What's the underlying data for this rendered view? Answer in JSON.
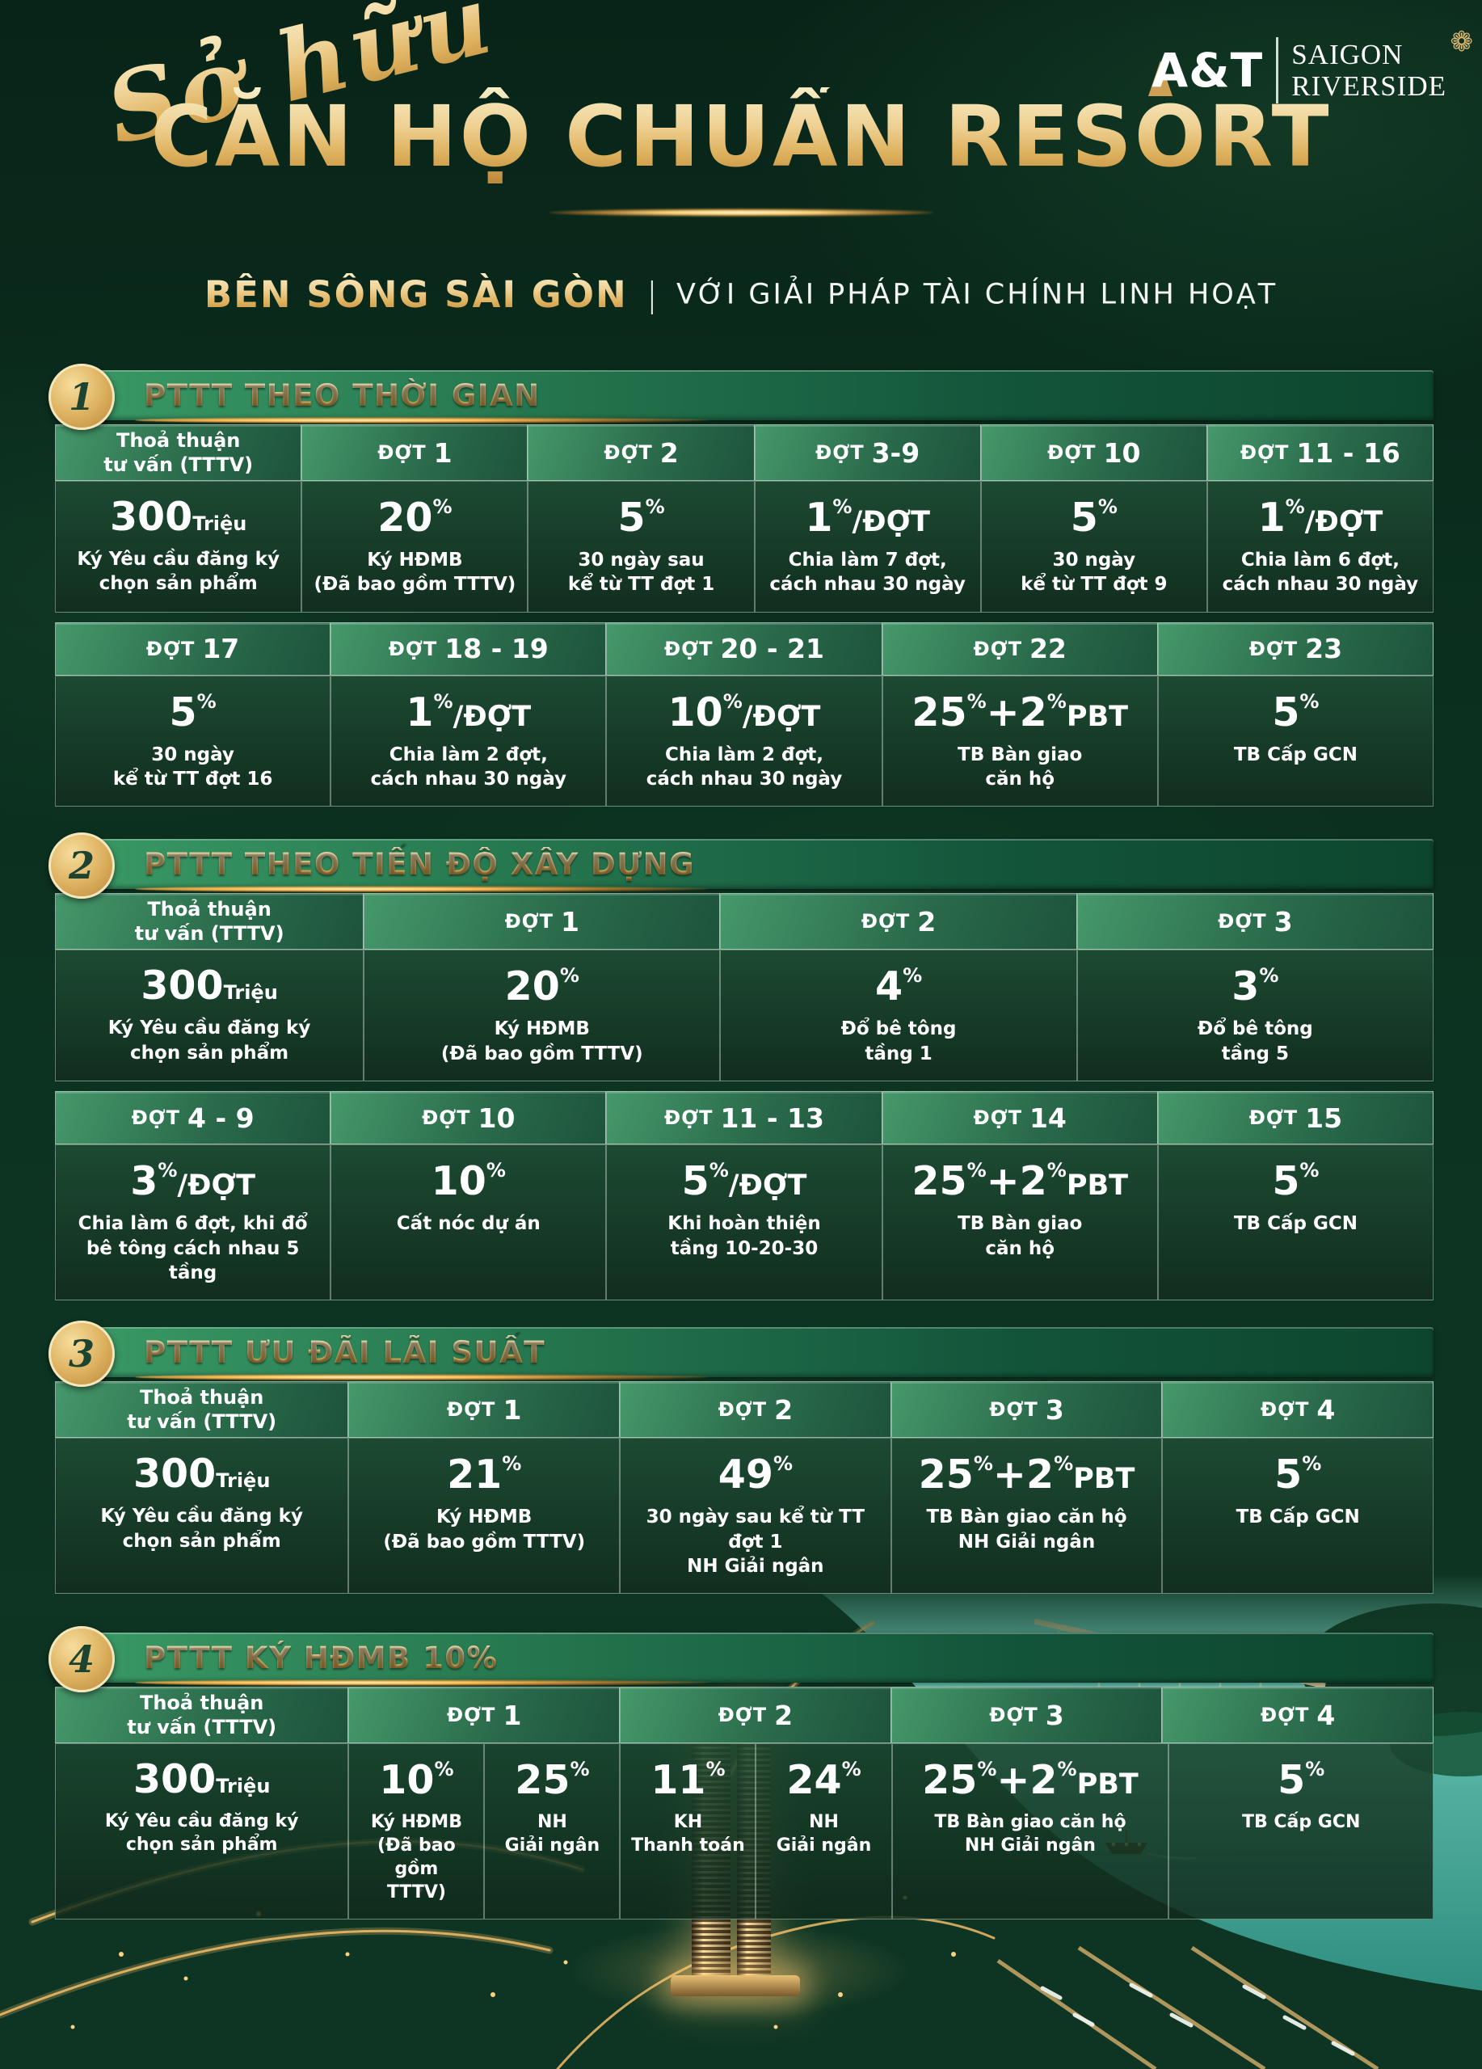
{
  "logo": {
    "brand": "A&T",
    "name_line1": "SAIGON",
    "name_line2": "RIVERSIDE",
    "flower_icon": "❁"
  },
  "hero": {
    "script": "Sở hữu",
    "title": "CĂN HỘ CHUẨN RESORT",
    "sub_gold": "BÊN SÔNG SÀI GÒN",
    "sub_sep": "|",
    "sub_white": "VỚI GIẢI PHÁP TÀI CHÍNH LINH HOẠT"
  },
  "colors": {
    "accent_gold": "#e3b864",
    "deep_green": "#0b2f1f",
    "header_cell_green": "#2e7d54",
    "river_teal": "#55b3a4"
  },
  "sections": [
    {
      "num": "1",
      "title": "PTTT THEO THỜI GIAN",
      "rows": [
        {
          "headers": [
            {
              "lines": [
                "Thoả thuận",
                "tư vấn (TTTV)"
              ]
            },
            {
              "pre": "ĐỢT",
              "num": "1"
            },
            {
              "pre": "ĐỢT",
              "num": "2"
            },
            {
              "pre": "ĐỢT",
              "num": "3-9"
            },
            {
              "pre": "ĐỢT",
              "num": "10"
            },
            {
              "pre": "ĐỢT",
              "num": "11 - 16"
            }
          ],
          "cells": [
            {
              "value": [
                [
                  "300",
                  "num"
                ],
                [
                  "Triệu",
                  "unit"
                ]
              ],
              "sub": [
                "Ký Yêu cầu đăng ký",
                "chọn sản phẩm"
              ]
            },
            {
              "value": [
                [
                  "20",
                  "num"
                ],
                [
                  "%",
                  "sup"
                ]
              ],
              "sub": [
                "Ký HĐMB",
                "(Đã bao gồm TTTV)"
              ]
            },
            {
              "value": [
                [
                  "5",
                  "num"
                ],
                [
                  "%",
                  "sup"
                ]
              ],
              "sub": [
                "30 ngày sau",
                "kể từ TT đợt 1"
              ]
            },
            {
              "value": [
                [
                  "1",
                  "num"
                ],
                [
                  "%",
                  "sup"
                ],
                [
                  "/ĐỢT",
                  "unitlg"
                ]
              ],
              "sub": [
                "Chia làm 7 đợt,",
                "cách nhau 30 ngày"
              ]
            },
            {
              "value": [
                [
                  "5",
                  "num"
                ],
                [
                  "%",
                  "sup"
                ]
              ],
              "sub": [
                "30 ngày",
                "kể từ TT đợt 9"
              ]
            },
            {
              "value": [
                [
                  "1",
                  "num"
                ],
                [
                  "%",
                  "sup"
                ],
                [
                  "/ĐỢT",
                  "unitlg"
                ]
              ],
              "sub": [
                "Chia làm 6 đợt,",
                "cách nhau 30 ngày"
              ]
            }
          ]
        },
        {
          "headers": [
            {
              "pre": "ĐỢT",
              "num": "17"
            },
            {
              "pre": "ĐỢT",
              "num": "18 - 19"
            },
            {
              "pre": "ĐỢT",
              "num": "20 - 21"
            },
            {
              "pre": "ĐỢT",
              "num": "22"
            },
            {
              "pre": "ĐỢT",
              "num": "23"
            }
          ],
          "cells": [
            {
              "value": [
                [
                  "5",
                  "num"
                ],
                [
                  "%",
                  "sup"
                ]
              ],
              "sub": [
                "30 ngày",
                "kể từ TT đợt 16"
              ]
            },
            {
              "value": [
                [
                  "1",
                  "num"
                ],
                [
                  "%",
                  "sup"
                ],
                [
                  "/ĐỢT",
                  "unitlg"
                ]
              ],
              "sub": [
                "Chia làm 2 đợt,",
                "cách nhau 30 ngày"
              ]
            },
            {
              "value": [
                [
                  "10",
                  "num"
                ],
                [
                  "%",
                  "sup"
                ],
                [
                  "/ĐỢT",
                  "unitlg"
                ]
              ],
              "sub": [
                "Chia làm 2 đợt,",
                "cách nhau 30 ngày"
              ]
            },
            {
              "value": [
                [
                  "25",
                  "num"
                ],
                [
                  "%",
                  "sup"
                ],
                [
                  "+2",
                  "num"
                ],
                [
                  "%",
                  "sup"
                ],
                [
                  "PBT",
                  "unitlg"
                ]
              ],
              "sub": [
                "TB Bàn giao",
                "căn hộ"
              ]
            },
            {
              "value": [
                [
                  "5",
                  "num"
                ],
                [
                  "%",
                  "sup"
                ]
              ],
              "sub": [
                "TB Cấp GCN"
              ]
            }
          ]
        }
      ]
    },
    {
      "num": "2",
      "title": "PTTT THEO TIẾN ĐỘ XÂY DỰNG",
      "rows": [
        {
          "headers": [
            {
              "lines": [
                "Thoả thuận",
                "tư vấn (TTTV)"
              ]
            },
            {
              "pre": "ĐỢT",
              "num": "1"
            },
            {
              "pre": "ĐỢT",
              "num": "2"
            },
            {
              "pre": "ĐỢT",
              "num": "3"
            }
          ],
          "cells": [
            {
              "value": [
                [
                  "300",
                  "num"
                ],
                [
                  "Triệu",
                  "unit"
                ]
              ],
              "sub": [
                "Ký Yêu cầu đăng ký",
                "chọn sản phẩm"
              ]
            },
            {
              "value": [
                [
                  "20",
                  "num"
                ],
                [
                  "%",
                  "sup"
                ]
              ],
              "sub": [
                "Ký HĐMB",
                "(Đã bao gồm TTTV)"
              ]
            },
            {
              "value": [
                [
                  "4",
                  "num"
                ],
                [
                  "%",
                  "sup"
                ]
              ],
              "sub": [
                "Đổ bê tông",
                "tầng 1"
              ]
            },
            {
              "value": [
                [
                  "3",
                  "num"
                ],
                [
                  "%",
                  "sup"
                ]
              ],
              "sub": [
                "Đổ bê tông",
                "tầng 5"
              ]
            }
          ]
        },
        {
          "headers": [
            {
              "pre": "ĐỢT",
              "num": "4 - 9"
            },
            {
              "pre": "ĐỢT",
              "num": "10"
            },
            {
              "pre": "ĐỢT",
              "num": "11 - 13"
            },
            {
              "pre": "ĐỢT",
              "num": "14"
            },
            {
              "pre": "ĐỢT",
              "num": "15"
            }
          ],
          "cells": [
            {
              "value": [
                [
                  "3",
                  "num"
                ],
                [
                  "%",
                  "sup"
                ],
                [
                  "/ĐỢT",
                  "unitlg"
                ]
              ],
              "sub": [
                "Chia làm 6 đợt, khi đổ",
                "bê tông cách nhau 5 tầng"
              ]
            },
            {
              "value": [
                [
                  "10",
                  "num"
                ],
                [
                  "%",
                  "sup"
                ]
              ],
              "sub": [
                "Cất nóc dự án"
              ]
            },
            {
              "value": [
                [
                  "5",
                  "num"
                ],
                [
                  "%",
                  "sup"
                ],
                [
                  "/ĐỢT",
                  "unitlg"
                ]
              ],
              "sub": [
                "Khi hoàn thiện",
                "tầng 10-20-30"
              ]
            },
            {
              "value": [
                [
                  "25",
                  "num"
                ],
                [
                  "%",
                  "sup"
                ],
                [
                  "+2",
                  "num"
                ],
                [
                  "%",
                  "sup"
                ],
                [
                  "PBT",
                  "unitlg"
                ]
              ],
              "sub": [
                "TB Bàn giao",
                "căn hộ"
              ]
            },
            {
              "value": [
                [
                  "5",
                  "num"
                ],
                [
                  "%",
                  "sup"
                ]
              ],
              "sub": [
                "TB Cấp GCN"
              ]
            }
          ]
        }
      ]
    },
    {
      "num": "3",
      "title": "PTTT ƯU ĐÃI LÃI SUẤT",
      "rows": [
        {
          "headers": [
            {
              "lines": [
                "Thoả thuận",
                "tư vấn (TTTV)"
              ]
            },
            {
              "pre": "ĐỢT",
              "num": "1"
            },
            {
              "pre": "ĐỢT",
              "num": "2"
            },
            {
              "pre": "ĐỢT",
              "num": "3"
            },
            {
              "pre": "ĐỢT",
              "num": "4"
            }
          ],
          "cells": [
            {
              "value": [
                [
                  "300",
                  "num"
                ],
                [
                  "Triệu",
                  "unit"
                ]
              ],
              "sub": [
                "Ký Yêu cầu đăng ký",
                "chọn sản phẩm"
              ]
            },
            {
              "value": [
                [
                  "21",
                  "num"
                ],
                [
                  "%",
                  "sup"
                ]
              ],
              "sub": [
                "Ký HĐMB",
                "(Đã bao gồm TTTV)"
              ]
            },
            {
              "value": [
                [
                  "49",
                  "num"
                ],
                [
                  "%",
                  "sup"
                ]
              ],
              "sub": [
                "30 ngày sau kể từ TT đợt 1",
                "NH Giải ngân"
              ]
            },
            {
              "value": [
                [
                  "25",
                  "num"
                ],
                [
                  "%",
                  "sup"
                ],
                [
                  "+2",
                  "num"
                ],
                [
                  "%",
                  "sup"
                ],
                [
                  "PBT",
                  "unitlg"
                ]
              ],
              "sub": [
                "TB Bàn giao căn hộ",
                "NH Giải ngân"
              ]
            },
            {
              "value": [
                [
                  "5",
                  "num"
                ],
                [
                  "%",
                  "sup"
                ]
              ],
              "sub": [
                "TB Cấp GCN"
              ]
            }
          ]
        }
      ]
    },
    {
      "num": "4",
      "title": "PTTT KÝ HĐMB 10%",
      "rows": [
        {
          "headers": [
            {
              "lines": [
                "Thoả thuận",
                "tư vấn (TTTV)"
              ]
            },
            {
              "pre": "ĐỢT",
              "num": "1"
            },
            {
              "pre": "ĐỢT",
              "num": "2"
            },
            {
              "pre": "ĐỢT",
              "num": "3"
            },
            {
              "pre": "ĐỢT",
              "num": "4"
            }
          ],
          "cells": [
            {
              "value": [
                [
                  "300",
                  "num"
                ],
                [
                  "Triệu",
                  "unit"
                ]
              ],
              "sub": [
                "Ký Yêu cầu đăng ký",
                "chọn sản phẩm"
              ]
            },
            {
              "value": [
                [
                  "10",
                  "num"
                ],
                [
                  "%",
                  "sup"
                ]
              ],
              "sub": [
                "Ký HĐMB",
                "(Đã bao gồm",
                "TTTV)"
              ]
            },
            {
              "value": [
                [
                  "25",
                  "num"
                ],
                [
                  "%",
                  "sup"
                ]
              ],
              "sub": [
                "NH",
                "Giải ngân"
              ]
            },
            {
              "value": [
                [
                  "11",
                  "num"
                ],
                [
                  "%",
                  "sup"
                ]
              ],
              "sub": [
                "KH",
                "Thanh toán"
              ]
            },
            {
              "value": [
                [
                  "24",
                  "num"
                ],
                [
                  "%",
                  "sup"
                ]
              ],
              "sub": [
                "NH",
                "Giải ngân"
              ]
            },
            {
              "value": [
                [
                  "25",
                  "num"
                ],
                [
                  "%",
                  "sup"
                ],
                [
                  "+2",
                  "num"
                ],
                [
                  "%",
                  "sup"
                ],
                [
                  "PBT",
                  "unitlg"
                ]
              ],
              "sub": [
                "TB Bàn giao căn hộ",
                "NH Giải ngân"
              ]
            },
            {
              "value": [
                [
                  "5",
                  "num"
                ],
                [
                  "%",
                  "sup"
                ]
              ],
              "sub": [
                "TB Cấp GCN"
              ]
            }
          ]
        }
      ]
    }
  ]
}
